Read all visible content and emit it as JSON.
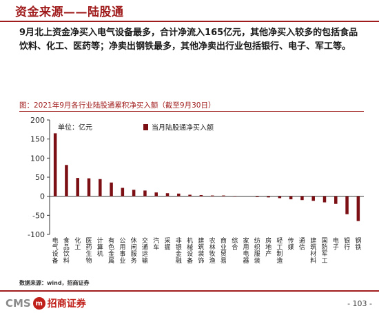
{
  "header": {
    "title": "资金来源——陆股通"
  },
  "summary": "9月北上资金净买入电气设备最多，合计净流入165亿元，其他净买入较多的包括食品饮料、化工、医药等；净卖出钢铁最多，其他净卖出行业包括银行、电子、军工等。",
  "chart_caption": "图：2021年9月各行业陆股通累积净买入额（截至9月30日）",
  "source": "数据来源：wind，招商证券",
  "footer": {
    "logo_en": "CMS",
    "logo_badge": "m",
    "logo_cn": "招商证券",
    "page": "- 103 -"
  },
  "colors": {
    "accent": "#a01c1c",
    "bar": "#7b0f14"
  },
  "chart_data": {
    "type": "bar",
    "unit_label": "单位：亿元",
    "legend": "当月陆股通净买入额",
    "legend_position": "top",
    "ylim": [
      -100,
      200
    ],
    "yticks": [
      -100,
      -50,
      0,
      50,
      100,
      150,
      200
    ],
    "grid": false,
    "categories": [
      "电气设备",
      "食品饮料",
      "化工",
      "医药生物",
      "计算机",
      "有色金属",
      "公用事业",
      "休闲服务",
      "交通运输",
      "汽车",
      "采掘",
      "非银金融",
      "机械设备",
      "建筑装饰",
      "农林牧渔",
      "商业贸易",
      "综合",
      "家用电器",
      "纺织服装",
      "房地产",
      "轻工制造",
      "传媒",
      "通信",
      "建筑材料",
      "国防军工",
      "电子",
      "银行",
      "钢铁"
    ],
    "values": [
      165,
      82,
      48,
      47,
      45,
      36,
      22,
      17,
      15,
      10,
      8,
      7,
      4,
      3,
      2,
      2,
      1,
      0,
      -2,
      -3,
      -5,
      -8,
      -10,
      -12,
      -16,
      -20,
      -47,
      -65
    ]
  }
}
